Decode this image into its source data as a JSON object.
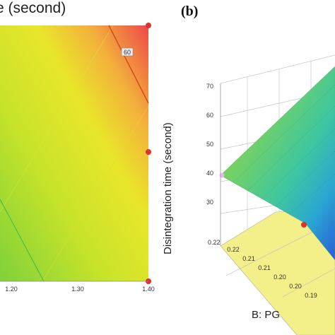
{
  "panel_a": {
    "title_fragment": "e (second)",
    "contour_label": "60"
  },
  "panel_b": {
    "letter": "(b)",
    "zlabel": "Disintegration time (second)",
    "ylabel": "B: PG"
  },
  "chart_data": [
    {
      "type": "heatmap",
      "title": "e (second)",
      "x_ticks": [
        "1.20",
        "1.30",
        "1.40"
      ],
      "contour_levels": [
        {
          "value": 60,
          "label": "60"
        }
      ],
      "design_points_on_right_edge": 3,
      "colors": {
        "low": "#3cb84a",
        "mid": "#e8ea2a",
        "high": "#ee4848"
      }
    },
    {
      "type": "surface",
      "zlabel": "Disintegration time (second)",
      "z_ticks": [
        "30",
        "40",
        "50",
        "60",
        "70"
      ],
      "y_label": "B: PG",
      "y_ticks": [
        "0.22",
        "0.21",
        "0.21",
        "0.20",
        "0.20",
        "0.19"
      ],
      "floor_tick": "0.22",
      "colors": {
        "low": "#2a5bd7",
        "mid": "#3ec6a0",
        "high": "#9bd83a",
        "floor": "#f3f08a"
      }
    }
  ]
}
